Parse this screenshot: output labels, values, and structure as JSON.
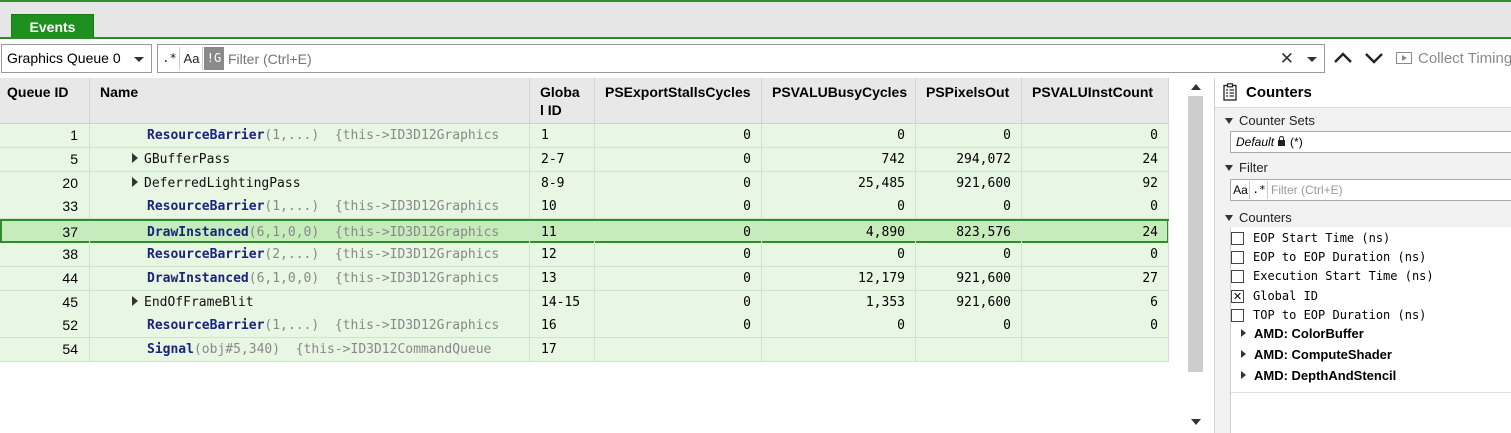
{
  "tabs": {
    "events_label": "Events"
  },
  "toolbar": {
    "queue_selected": "Graphics Queue 0",
    "regex_btn": ".*",
    "case_btn": "Aa",
    "global_btn": "!G",
    "filter_placeholder": "Filter (Ctrl+E)",
    "clear_glyph": "✕",
    "collect_label": "Collect Timing"
  },
  "grid": {
    "headers": {
      "queue_id": "Queue ID",
      "name": "Name",
      "global_id": "Globa\nl ID",
      "ps_export": "PSExportStallsCycles",
      "psvalu_busy": "PSVALUBusyCycles",
      "ps_pixels": "PSPixelsOut",
      "psvalu_inst": "PSVALUInstCount"
    },
    "rows": [
      {
        "queue_id": "1",
        "api": "ResourceBarrier",
        "args": "(1,...)",
        "obj": "{this->ID3D12Graphics",
        "global_id": "1",
        "ps_export": "0",
        "psvalu_busy": "0",
        "ps_pixels": "0",
        "psvalu_inst": "0"
      },
      {
        "queue_id": "5",
        "group": "GBufferPass",
        "global_id": "2-7",
        "ps_export": "0",
        "psvalu_busy": "742",
        "ps_pixels": "294,072",
        "psvalu_inst": "24"
      },
      {
        "queue_id": "20",
        "group": "DeferredLightingPass",
        "global_id": "8-9",
        "ps_export": "0",
        "psvalu_busy": "25,485",
        "ps_pixels": "921,600",
        "psvalu_inst": "92"
      },
      {
        "queue_id": "33",
        "api": "ResourceBarrier",
        "args": "(1,...)",
        "obj": "{this->ID3D12Graphics",
        "global_id": "10",
        "ps_export": "0",
        "psvalu_busy": "0",
        "ps_pixels": "0",
        "psvalu_inst": "0"
      },
      {
        "queue_id": "37",
        "api": "DrawInstanced",
        "args": "(6,1,0,0)",
        "obj": "{this->ID3D12Graphics",
        "global_id": "11",
        "ps_export": "0",
        "psvalu_busy": "4,890",
        "ps_pixels": "823,576",
        "psvalu_inst": "24"
      },
      {
        "queue_id": "38",
        "api": "ResourceBarrier",
        "args": "(2,...)",
        "obj": "{this->ID3D12Graphics",
        "global_id": "12",
        "ps_export": "0",
        "psvalu_busy": "0",
        "ps_pixels": "0",
        "psvalu_inst": "0"
      },
      {
        "queue_id": "44",
        "api": "DrawInstanced",
        "args": "(6,1,0,0)",
        "obj": "{this->ID3D12Graphics",
        "global_id": "13",
        "ps_export": "0",
        "psvalu_busy": "12,179",
        "ps_pixels": "921,600",
        "psvalu_inst": "27"
      },
      {
        "queue_id": "45",
        "group": "EndOfFrameBlit",
        "global_id": "14-15",
        "ps_export": "0",
        "psvalu_busy": "1,353",
        "ps_pixels": "921,600",
        "psvalu_inst": "6"
      },
      {
        "queue_id": "52",
        "api": "ResourceBarrier",
        "args": "(1,...)",
        "obj": "{this->ID3D12Graphics",
        "global_id": "16",
        "ps_export": "0",
        "psvalu_busy": "0",
        "ps_pixels": "0",
        "psvalu_inst": "0"
      },
      {
        "queue_id": "54",
        "api": "Signal",
        "args": "(obj#5,340)",
        "obj": "{this->ID3D12CommandQueue",
        "global_id": "17",
        "ps_export": "",
        "psvalu_busy": "",
        "ps_pixels": "",
        "psvalu_inst": ""
      }
    ]
  },
  "counters": {
    "title": "Counters",
    "counter_sets_label": "Counter Sets",
    "counter_set_value": "Default",
    "counter_set_suffix": "(*)",
    "filter_label": "Filter",
    "filter_case": "Aa",
    "filter_regex": ".*",
    "filter_placeholder": "Filter (Ctrl+E)",
    "counters_label": "Counters",
    "items": [
      {
        "label": "EOP Start Time (ns)",
        "checked": ""
      },
      {
        "label": "EOP to EOP Duration (ns)",
        "checked": ""
      },
      {
        "label": "Execution Start Time (ns)",
        "checked": ""
      },
      {
        "label": "Global ID",
        "checked": "✕"
      },
      {
        "label": "TOP to EOP Duration (ns)",
        "checked": ""
      }
    ],
    "groups": [
      "AMD: ColorBuffer",
      "AMD: ComputeShader",
      "AMD: DepthAndStencil"
    ]
  },
  "colors": {
    "accent_green": "#1f8f1f",
    "row_bg": "#e8f7e3",
    "selected_bg": "#c7ecbc",
    "api_blue": "#1a237e"
  }
}
